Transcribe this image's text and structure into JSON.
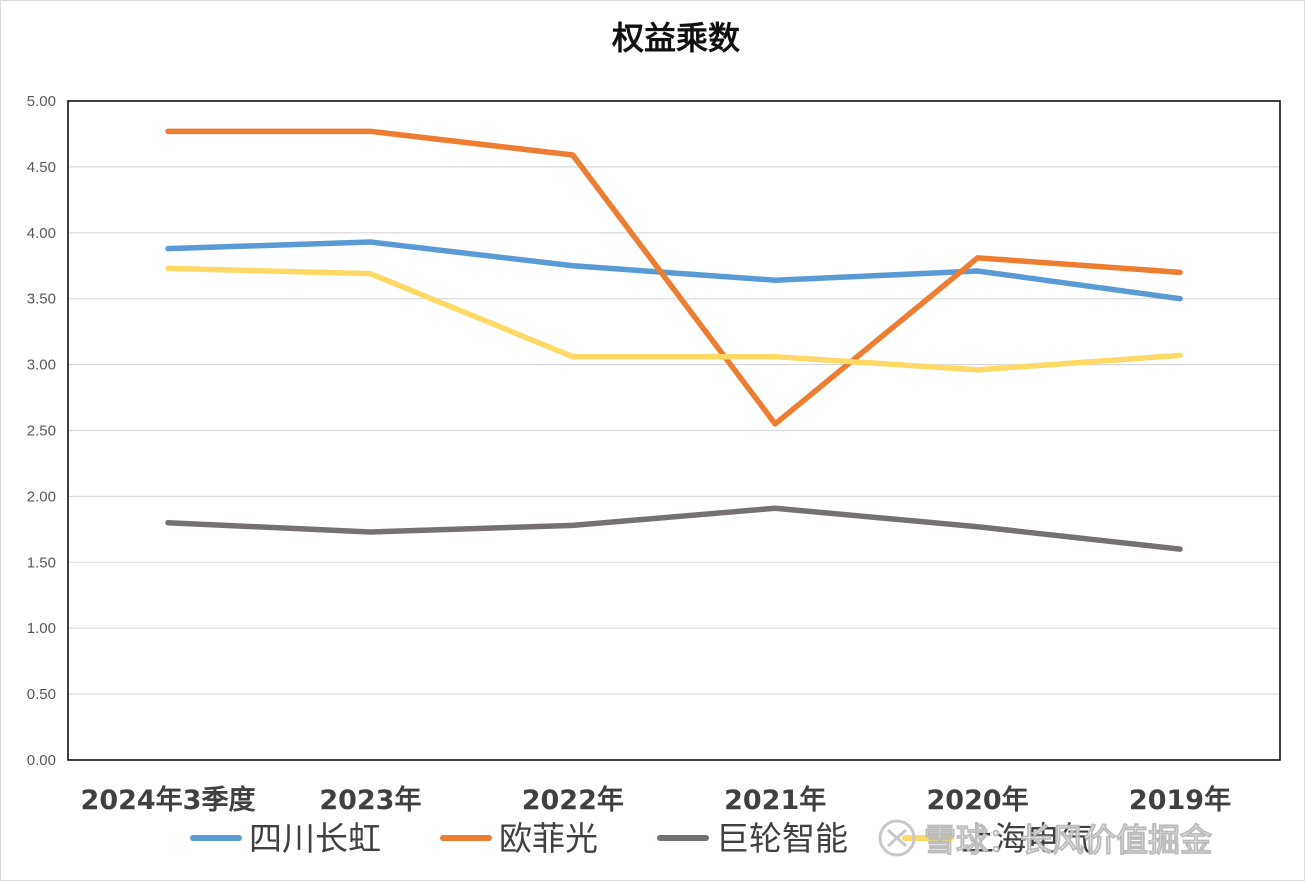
{
  "chart_data": {
    "type": "line",
    "title": "权益乘数",
    "categories": [
      "2024年3季度",
      "2023年",
      "2022年",
      "2021年",
      "2020年",
      "2019年"
    ],
    "ylim": [
      0,
      5
    ],
    "yticks": [
      "0.00",
      "0.50",
      "1.00",
      "1.50",
      "2.00",
      "2.50",
      "3.00",
      "3.50",
      "4.00",
      "4.50",
      "5.00"
    ],
    "grid": true,
    "legend": "bottom",
    "series": [
      {
        "name": "四川长虹",
        "color": "#5B9BD5",
        "values": [
          3.88,
          3.93,
          3.75,
          3.64,
          3.71,
          3.5
        ]
      },
      {
        "name": "欧菲光",
        "color": "#ED7D31",
        "values": [
          4.77,
          4.77,
          4.59,
          2.55,
          3.81,
          3.7
        ]
      },
      {
        "name": "巨轮智能",
        "color": "#767171",
        "values": [
          1.8,
          1.73,
          1.78,
          1.91,
          1.77,
          1.6
        ]
      },
      {
        "name": "上海电气",
        "color": "#FFD966",
        "values": [
          3.73,
          3.69,
          3.06,
          3.06,
          2.96,
          3.07
        ]
      }
    ]
  },
  "watermark": "雪球：长风价值掘金"
}
